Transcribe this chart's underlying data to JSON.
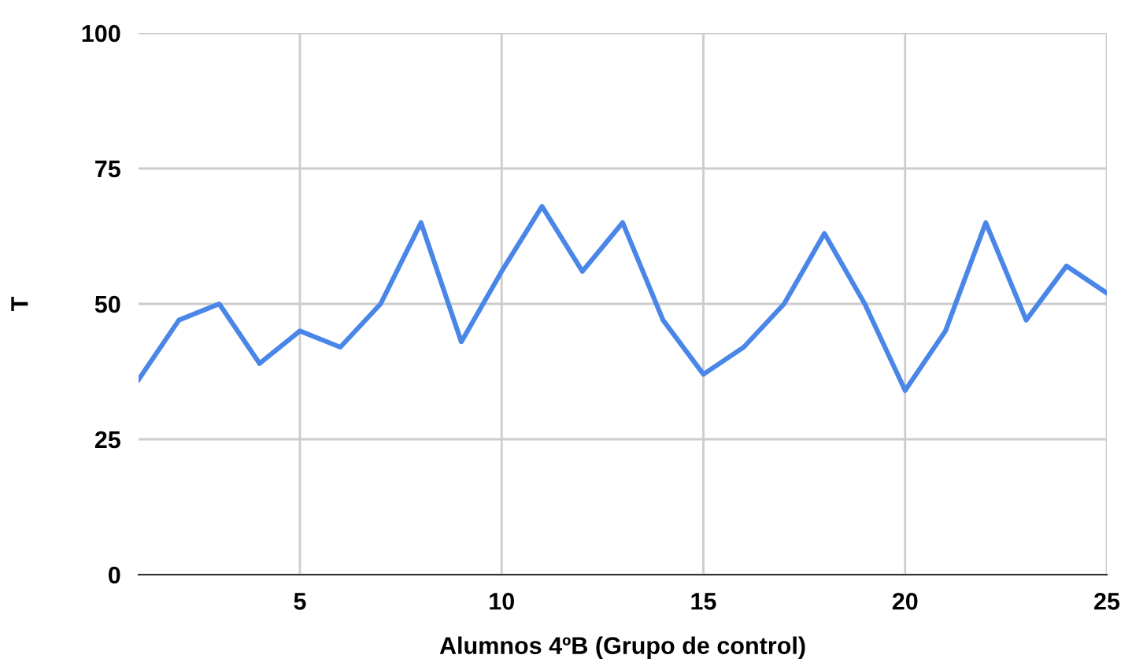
{
  "chart_data": {
    "type": "line",
    "xlabel": "Alumnos 4ºB (Grupo de control)",
    "ylabel": "T",
    "x": [
      1,
      2,
      3,
      4,
      5,
      6,
      7,
      8,
      9,
      10,
      11,
      12,
      13,
      14,
      15,
      16,
      17,
      18,
      19,
      20,
      21,
      22,
      23,
      24,
      25
    ],
    "series": [
      {
        "color": "#4a86e8",
        "values": [
          36,
          47,
          50,
          39,
          45,
          42,
          50,
          65,
          43,
          56,
          68,
          56,
          65,
          47,
          37,
          42,
          50,
          63,
          50,
          34,
          45,
          65,
          47,
          57,
          52
        ]
      }
    ],
    "xlim": [
      1,
      25
    ],
    "xticks": [
      5,
      10,
      15,
      20,
      25
    ],
    "ylim": [
      0,
      100
    ],
    "yticks": [
      0,
      25,
      50,
      75,
      100
    ],
    "grid": true,
    "marker": "none",
    "line_style": "solid"
  }
}
